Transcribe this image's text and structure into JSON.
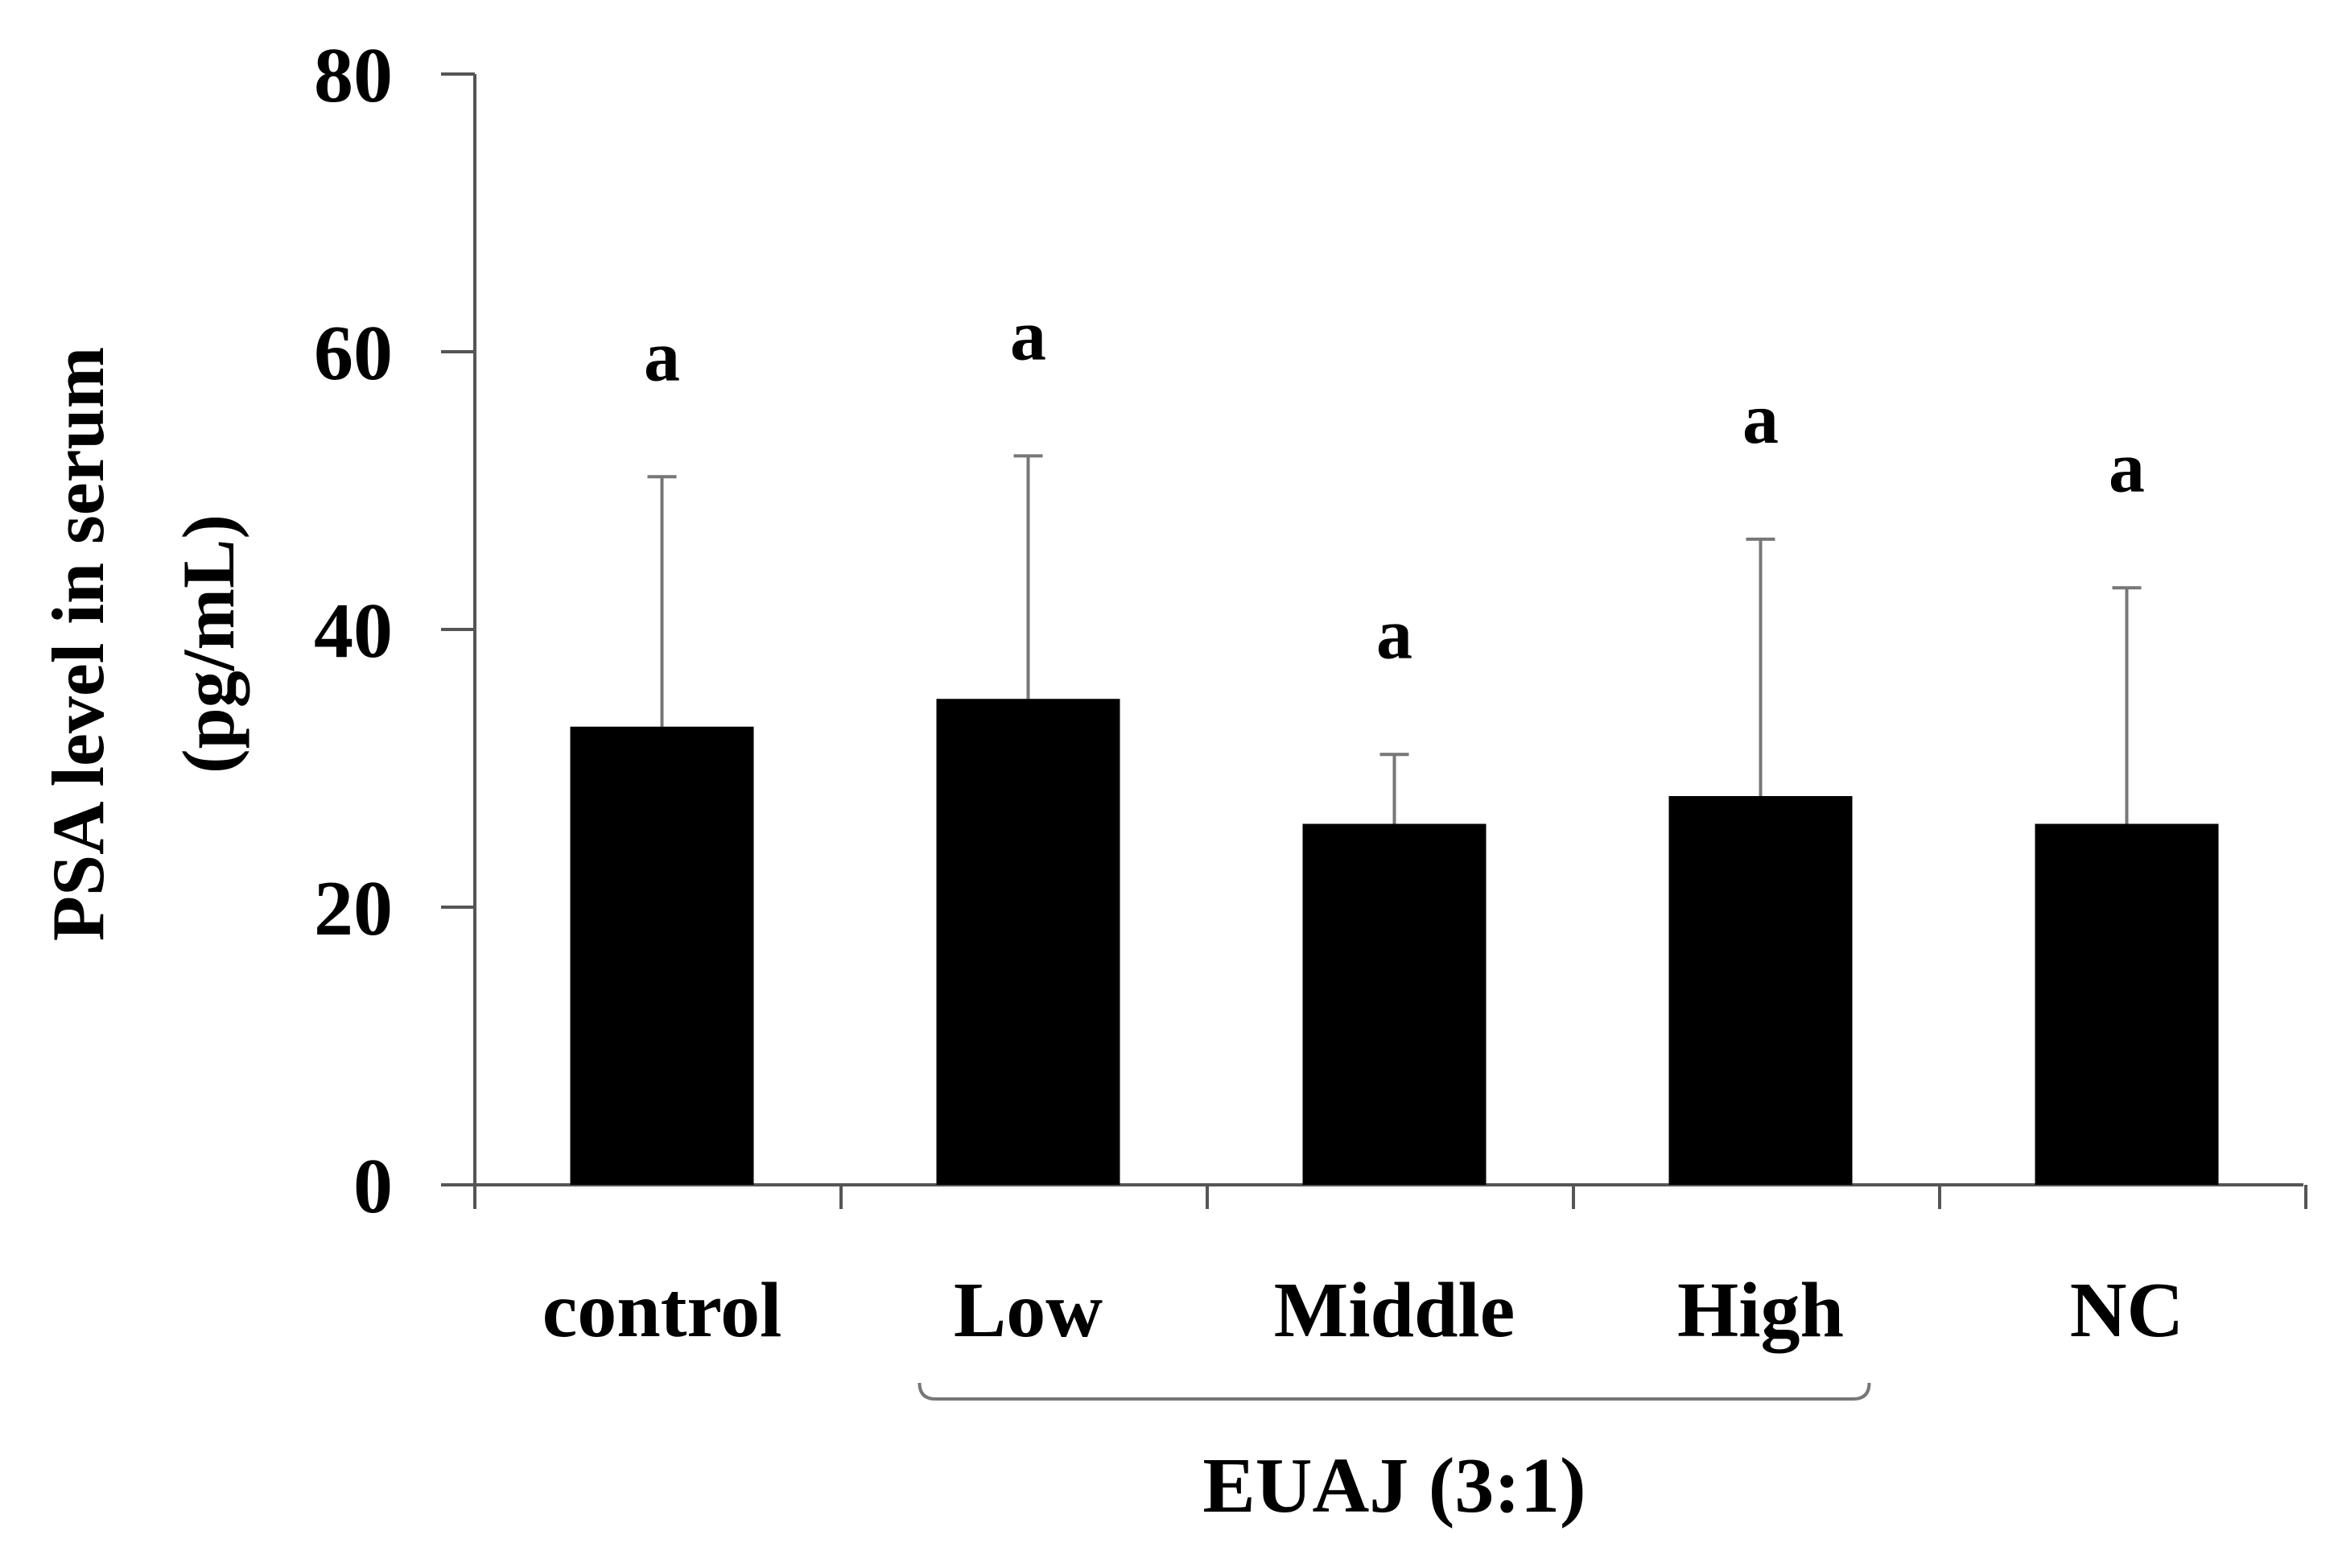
{
  "chart_data": {
    "type": "bar",
    "title": "",
    "xlabel": "",
    "ylabel_line1": "PSA level in serum",
    "ylabel_line2": "(pg/mL)",
    "ylim": [
      0,
      80
    ],
    "yticks": [
      0,
      20,
      40,
      60,
      80
    ],
    "ytick_labels": [
      "0",
      "20",
      "40",
      "60",
      "80"
    ],
    "grid": false,
    "categories": [
      "control",
      "Low",
      "Middle",
      "High",
      "NC"
    ],
    "values": [
      33,
      35,
      26,
      28,
      26
    ],
    "errors": [
      18,
      17.5,
      5,
      18.5,
      17
    ],
    "significance": [
      "a",
      "a",
      "a",
      "a",
      "a"
    ],
    "group_label": "EUAJ (3:1)",
    "group_members": [
      "Low",
      "Middle",
      "High"
    ],
    "bar_color": "#000000",
    "axis_color": "#555555",
    "error_color": "#777777"
  }
}
